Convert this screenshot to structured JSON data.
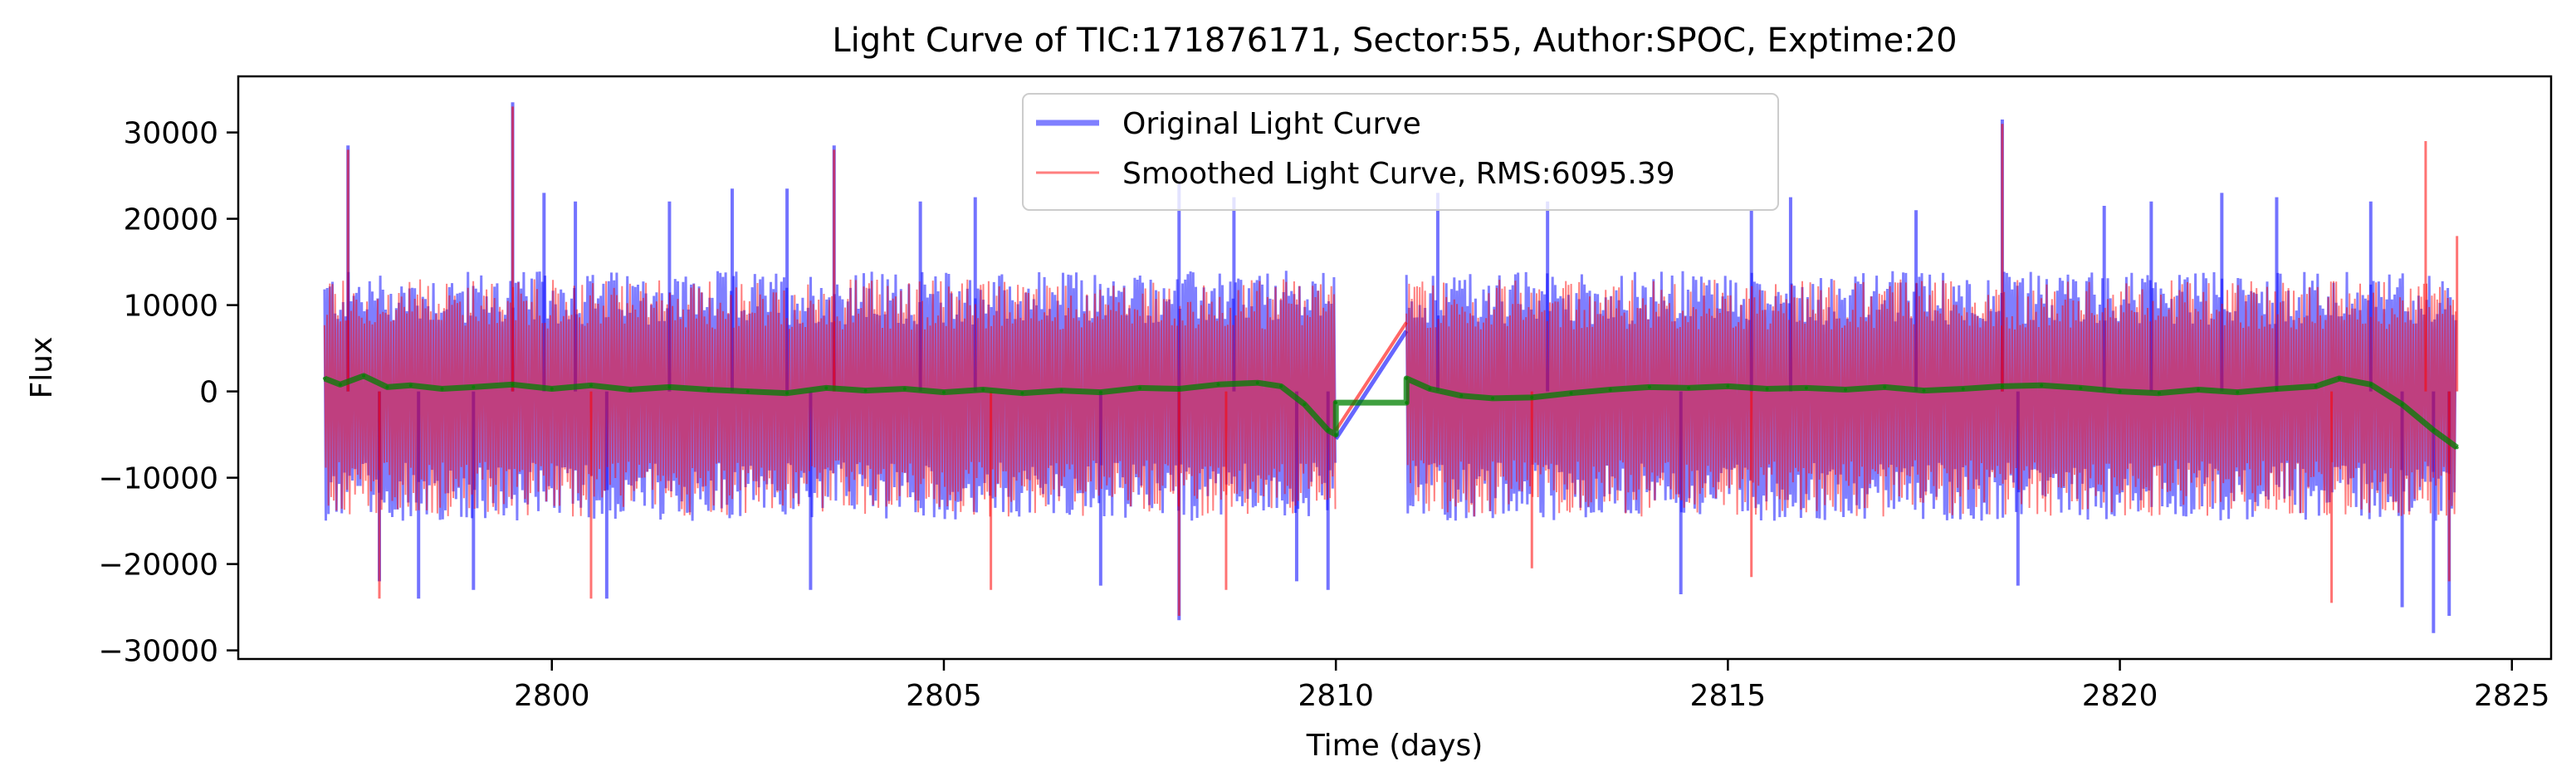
{
  "chart_data": {
    "type": "line",
    "title": "Light Curve of TIC:171876171, Sector:55, Author:SPOC, Exptime:20",
    "xlabel": "Time (days)",
    "ylabel": "Flux",
    "xlim": [
      2796,
      2825.5
    ],
    "ylim": [
      -31000,
      36500
    ],
    "x_ticks": [
      2800,
      2805,
      2810,
      2815,
      2820,
      2825
    ],
    "y_ticks": [
      -30000,
      -20000,
      -10000,
      0,
      10000,
      20000,
      30000
    ],
    "x_tick_labels": [
      "2800",
      "2805",
      "2810",
      "2815",
      "2820",
      "2825"
    ],
    "y_tick_labels": [
      "−30000",
      "−20000",
      "−10000",
      "0",
      "10000",
      "20000",
      "30000"
    ],
    "grid": false,
    "legend_position": "top-center",
    "segments": [
      [
        2797.1,
        2810.0
      ],
      [
        2810.9,
        2824.3
      ]
    ],
    "series": [
      {
        "name": "Original Light Curve",
        "color": "#0000ff",
        "band_upper": 14000,
        "band_lower": -15000,
        "spikes": [
          [
            2797.4,
            28500
          ],
          [
            2797.8,
            -22000
          ],
          [
            2798.3,
            -24000
          ],
          [
            2799.0,
            -23000
          ],
          [
            2799.5,
            33500
          ],
          [
            2799.9,
            23000
          ],
          [
            2800.3,
            22000
          ],
          [
            2800.7,
            -24000
          ],
          [
            2801.5,
            22000
          ],
          [
            2802.3,
            23500
          ],
          [
            2803.0,
            23500
          ],
          [
            2803.6,
            28500
          ],
          [
            2803.3,
            -23000
          ],
          [
            2804.7,
            22000
          ],
          [
            2805.4,
            22500
          ],
          [
            2807.0,
            -22500
          ],
          [
            2808.0,
            -26500
          ],
          [
            2808.0,
            24000
          ],
          [
            2808.7,
            22500
          ],
          [
            2809.5,
            -22000
          ],
          [
            2809.9,
            -23000
          ],
          [
            2811.3,
            23000
          ],
          [
            2812.7,
            22000
          ],
          [
            2814.4,
            -23500
          ],
          [
            2815.3,
            21000
          ],
          [
            2815.8,
            22500
          ],
          [
            2817.4,
            21000
          ],
          [
            2818.5,
            31500
          ],
          [
            2818.7,
            -22500
          ],
          [
            2819.8,
            21500
          ],
          [
            2820.4,
            22000
          ],
          [
            2821.3,
            23000
          ],
          [
            2822.0,
            22500
          ],
          [
            2823.2,
            22000
          ],
          [
            2823.6,
            -25000
          ],
          [
            2824.0,
            -28000
          ],
          [
            2824.2,
            -26000
          ]
        ],
        "bridge": [
          [
            2810.0,
            -5500
          ],
          [
            2810.9,
            7000
          ]
        ]
      },
      {
        "name": "Smoothed Light Curve, RMS:6095.39",
        "color": "#ff0000",
        "band_upper": 13000,
        "band_lower": -14500,
        "spikes": [
          [
            2797.4,
            28000
          ],
          [
            2797.8,
            -24000
          ],
          [
            2799.5,
            33000
          ],
          [
            2800.5,
            -24000
          ],
          [
            2803.6,
            28000
          ],
          [
            2805.6,
            -23000
          ],
          [
            2808.0,
            -26000
          ],
          [
            2808.6,
            -23000
          ],
          [
            2812.5,
            -20500
          ],
          [
            2815.3,
            -21500
          ],
          [
            2818.5,
            31000
          ],
          [
            2822.7,
            -24500
          ],
          [
            2823.9,
            29000
          ],
          [
            2824.2,
            -22000
          ],
          [
            2824.3,
            18000
          ]
        ],
        "bridge": [
          [
            2810.0,
            -4500
          ],
          [
            2810.9,
            8000
          ]
        ]
      },
      {
        "color": "#008000",
        "points": [
          [
            2797.1,
            1500
          ],
          [
            2797.3,
            800
          ],
          [
            2797.6,
            1800
          ],
          [
            2797.9,
            500
          ],
          [
            2798.2,
            700
          ],
          [
            2798.6,
            300
          ],
          [
            2799.0,
            500
          ],
          [
            2799.5,
            800
          ],
          [
            2800.0,
            300
          ],
          [
            2800.5,
            700
          ],
          [
            2801.0,
            200
          ],
          [
            2801.5,
            500
          ],
          [
            2802.0,
            200
          ],
          [
            2802.5,
            0
          ],
          [
            2803.0,
            -200
          ],
          [
            2803.5,
            400
          ],
          [
            2804.0,
            100
          ],
          [
            2804.5,
            300
          ],
          [
            2805.0,
            -100
          ],
          [
            2805.5,
            200
          ],
          [
            2806.0,
            -200
          ],
          [
            2806.5,
            100
          ],
          [
            2807.0,
            -100
          ],
          [
            2807.5,
            400
          ],
          [
            2808.0,
            300
          ],
          [
            2808.5,
            800
          ],
          [
            2809.0,
            1000
          ],
          [
            2809.3,
            600
          ],
          [
            2809.6,
            -1500
          ],
          [
            2809.9,
            -4500
          ],
          [
            2810.0,
            -5000
          ],
          [
            2810.0,
            -1300
          ],
          [
            2810.9,
            -1300
          ],
          [
            2810.9,
            1500
          ],
          [
            2811.2,
            300
          ],
          [
            2811.6,
            -500
          ],
          [
            2812.0,
            -800
          ],
          [
            2812.5,
            -700
          ],
          [
            2813.0,
            -200
          ],
          [
            2813.5,
            200
          ],
          [
            2814.0,
            500
          ],
          [
            2814.5,
            400
          ],
          [
            2815.0,
            600
          ],
          [
            2815.5,
            300
          ],
          [
            2816.0,
            400
          ],
          [
            2816.5,
            200
          ],
          [
            2817.0,
            500
          ],
          [
            2817.5,
            100
          ],
          [
            2818.0,
            300
          ],
          [
            2818.5,
            600
          ],
          [
            2819.0,
            700
          ],
          [
            2819.5,
            400
          ],
          [
            2820.0,
            0
          ],
          [
            2820.5,
            -200
          ],
          [
            2821.0,
            200
          ],
          [
            2821.5,
            -100
          ],
          [
            2822.0,
            300
          ],
          [
            2822.5,
            600
          ],
          [
            2822.8,
            1500
          ],
          [
            2823.2,
            800
          ],
          [
            2823.6,
            -1500
          ],
          [
            2824.0,
            -4500
          ],
          [
            2824.3,
            -6500
          ]
        ]
      }
    ]
  }
}
